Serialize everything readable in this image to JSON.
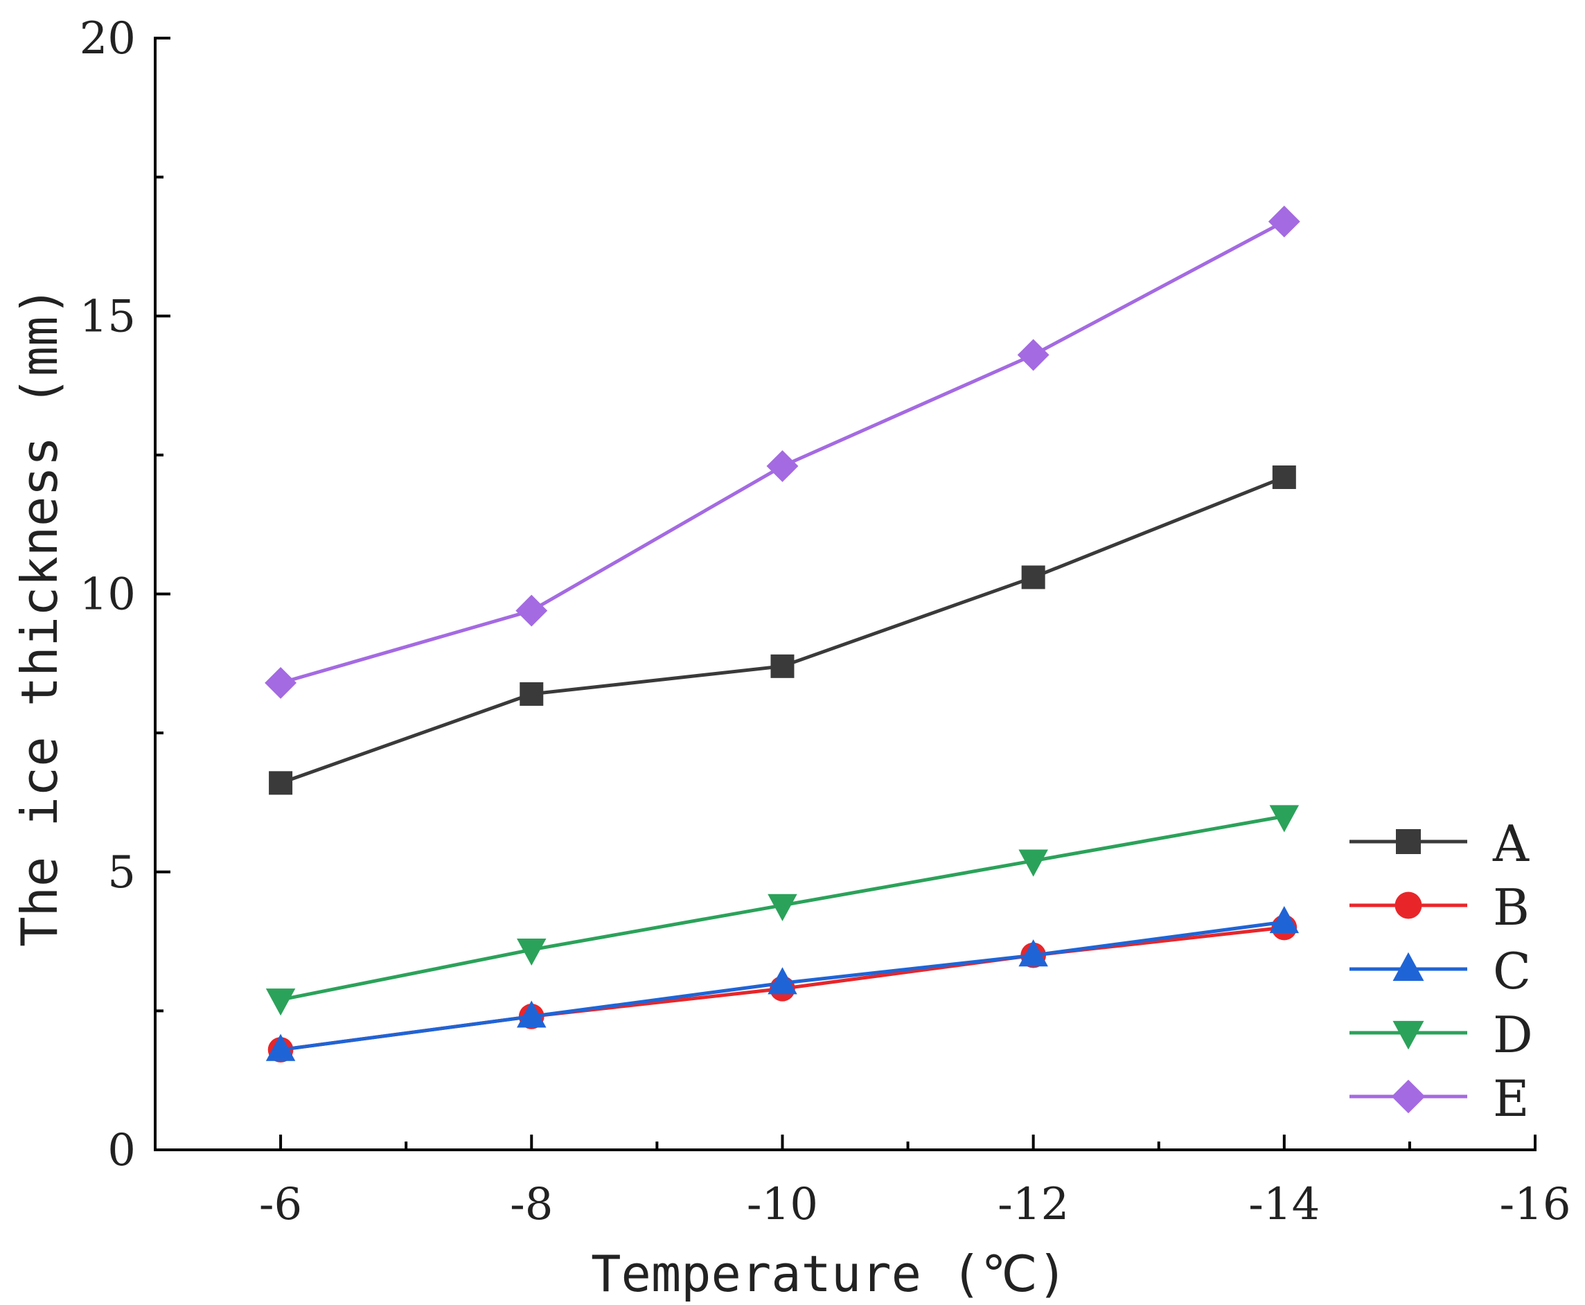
{
  "chart_data": {
    "type": "line",
    "title": "",
    "xlabel": "Temperature (℃)",
    "ylabel": "The ice thickness (mm)",
    "x": [
      -6,
      -8,
      -10,
      -12,
      -14
    ],
    "xlim": [
      -5,
      -16
    ],
    "ylim": [
      0,
      20
    ],
    "xticks": [
      -6,
      -8,
      -10,
      -12,
      -14,
      -16
    ],
    "xtick_labels": [
      "-6",
      "-8",
      "-10",
      "-12",
      "-14",
      "-16"
    ],
    "yticks": [
      0,
      5,
      10,
      15,
      20
    ],
    "ytick_labels": [
      "0",
      "5",
      "10",
      "15",
      "20"
    ],
    "legend_position": "bottom-right",
    "grid": false,
    "series": [
      {
        "name": "A",
        "color": "#3a3a3a",
        "marker": "square",
        "values": [
          6.6,
          8.2,
          8.7,
          10.3,
          12.1
        ]
      },
      {
        "name": "B",
        "color": "#e8262a",
        "marker": "circle",
        "values": [
          1.8,
          2.4,
          2.9,
          3.5,
          4.0
        ]
      },
      {
        "name": "C",
        "color": "#1f64d6",
        "marker": "triangle-up",
        "values": [
          1.8,
          2.4,
          3.0,
          3.5,
          4.1
        ]
      },
      {
        "name": "D",
        "color": "#2ba25a",
        "marker": "triangle-down",
        "values": [
          2.7,
          3.6,
          4.4,
          5.2,
          6.0
        ]
      },
      {
        "name": "E",
        "color": "#a46ae2",
        "marker": "diamond",
        "values": [
          8.4,
          9.7,
          12.3,
          14.3,
          16.7
        ]
      }
    ]
  }
}
